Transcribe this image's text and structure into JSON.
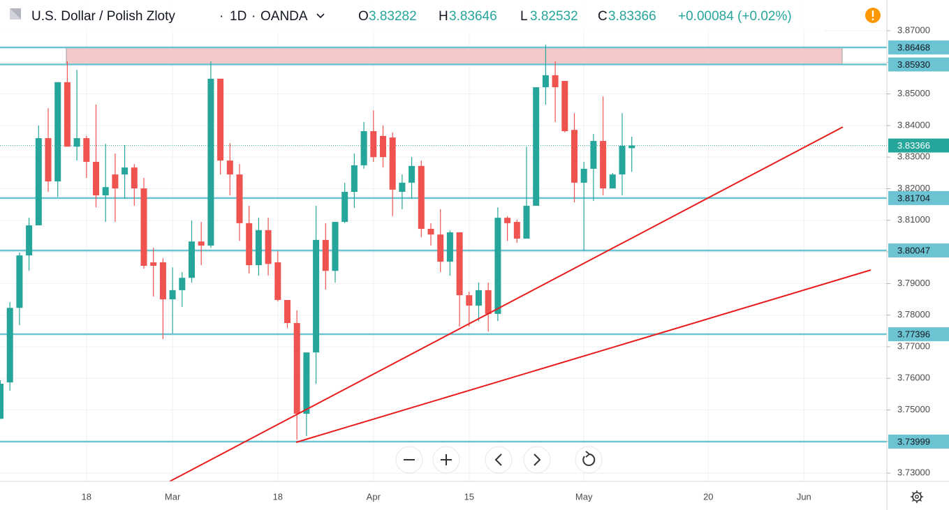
{
  "chart_data": {
    "type": "candlestick",
    "title": "U.S. Dollar / Polish Zloty",
    "interval": "1D",
    "source": "OANDA",
    "ohlc_labels": [
      "O",
      "H",
      "L",
      "C"
    ],
    "change": "+0.00084 (+0.02%)",
    "categories": [
      null,
      null,
      null,
      null,
      null,
      null,
      null,
      null,
      null,
      "18",
      null,
      null,
      null,
      null,
      null,
      null,
      null,
      null,
      "Mar",
      null,
      null,
      null,
      null,
      null,
      null,
      null,
      null,
      null,
      null,
      "18",
      null,
      null,
      null,
      null,
      null,
      null,
      null,
      null,
      null,
      "Apr",
      null,
      null,
      null,
      null,
      null,
      null,
      null,
      null,
      null,
      "15",
      null,
      null,
      null,
      null,
      null,
      null,
      null,
      null,
      null,
      null,
      null,
      "May",
      null,
      null,
      null,
      null,
      null,
      null,
      null,
      null,
      null,
      null,
      null,
      null,
      "20",
      null,
      null,
      null,
      null,
      null,
      null,
      null,
      null,
      null,
      "Jun",
      null,
      null,
      null,
      null,
      null,
      null,
      null,
      null
    ],
    "open": [
      3.7472,
      3.7587,
      3.7823,
      3.7989,
      3.8084,
      3.836,
      3.8223,
      3.8537,
      3.8333,
      3.836,
      3.8285,
      3.8179,
      3.8245,
      3.8245,
      3.8267,
      3.8201,
      3.7967,
      3.7967,
      3.785,
      3.7879,
      3.7918,
      3.8033,
      3.802,
      3.8548,
      3.8289,
      3.8245,
      3.8091,
      3.7958,
      3.8069,
      3.7967,
      3.7848,
      3.7775,
      3.7488,
      3.7682,
      3.8038,
      3.794,
      3.8095,
      3.819,
      3.8274,
      3.8382,
      3.8367,
      3.8362,
      3.819,
      3.8219,
      3.8272,
      3.8073,
      3.8055,
      3.7969,
      3.8062,
      3.7863,
      3.783,
      3.7879,
      3.7804,
      3.8108,
      3.8095,
      3.8042,
      3.8146,
      3.8521,
      3.8559,
      3.8541,
      3.8386,
      3.8219,
      3.8263,
      3.8351,
      3.8201,
      3.8245,
      3.83282,
      null,
      null,
      null,
      null,
      null,
      null,
      null,
      null,
      null,
      null,
      null,
      null,
      null,
      null,
      null,
      null,
      null,
      null,
      null,
      null,
      null,
      null,
      null,
      null,
      null,
      null
    ],
    "high": [
      3.7594,
      3.7841,
      3.7998,
      3.8108,
      3.84,
      3.8455,
      3.8537,
      3.8603,
      3.8576,
      3.8367,
      3.8466,
      3.8342,
      3.8311,
      3.8338,
      3.8278,
      3.8234,
      3.8013,
      3.798,
      3.7951,
      3.7936,
      3.8099,
      3.8095,
      3.8603,
      3.8548,
      3.8344,
      3.8278,
      3.8146,
      3.8108,
      3.8108,
      3.8002,
      3.7848,
      3.7815,
      3.7682,
      3.8146,
      3.8091,
      3.8095,
      3.8219,
      3.8311,
      3.8411,
      3.8448,
      3.84,
      3.8378,
      3.8245,
      3.83,
      3.8289,
      3.8091,
      3.8135,
      3.8068,
      3.8062,
      3.7874,
      3.7903,
      3.7903,
      3.8141,
      3.8113,
      3.8102,
      3.8333,
      3.8521,
      3.8656,
      3.8603,
      3.8541,
      3.8439,
      3.8285,
      3.8373,
      3.8492,
      3.825,
      3.8439,
      3.83646,
      null,
      null,
      null,
      null,
      null,
      null,
      null,
      null,
      null,
      null,
      null,
      null,
      null,
      null,
      null,
      null,
      null,
      null,
      null,
      null,
      null,
      null,
      null,
      null,
      null,
      null
    ],
    "low": [
      3.7472,
      3.7561,
      3.7768,
      3.794,
      3.8084,
      3.819,
      3.8174,
      3.8333,
      3.8289,
      3.8234,
      3.8141,
      3.8095,
      3.8095,
      3.8168,
      3.8146,
      3.7947,
      3.7859,
      3.7724,
      3.7742,
      3.7826,
      3.7903,
      3.7958,
      3.8013,
      3.8245,
      3.8179,
      3.8035,
      3.7932,
      3.7925,
      3.7925,
      3.7843,
      3.7759,
      3.7406,
      3.7417,
      3.7583,
      3.7881,
      3.7903,
      3.8091,
      3.8139,
      3.8263,
      3.8285,
      3.8267,
      3.8113,
      3.8135,
      3.8168,
      3.8046,
      3.802,
      3.7936,
      3.7925,
      3.7764,
      3.7764,
      3.7781,
      3.7748,
      3.7781,
      3.8035,
      3.8029,
      3.8042,
      3.8146,
      3.8466,
      3.8411,
      3.8378,
      3.8157,
      3.8004,
      3.8161,
      3.8179,
      3.8201,
      3.8179,
      3.82532,
      null,
      null,
      null,
      null,
      null,
      null,
      null,
      null,
      null,
      null,
      null,
      null,
      null,
      null,
      null,
      null,
      null,
      null,
      null,
      null,
      null,
      null,
      null,
      null,
      null,
      null
    ],
    "close": [
      3.7583,
      3.7823,
      3.7989,
      3.8084,
      3.836,
      3.8223,
      3.8537,
      3.8333,
      3.836,
      3.8285,
      3.8179,
      3.8205,
      3.8201,
      3.8267,
      3.8201,
      3.7956,
      3.7956,
      3.785,
      3.7879,
      3.7918,
      3.8033,
      3.802,
      3.8548,
      3.8289,
      3.8245,
      3.8091,
      3.7958,
      3.8069,
      3.7962,
      3.7848,
      3.7775,
      3.7488,
      3.7682,
      3.8038,
      3.794,
      3.8095,
      3.819,
      3.8274,
      3.8382,
      3.83,
      3.83,
      3.8197,
      3.8219,
      3.8272,
      3.8073,
      3.8055,
      3.7969,
      3.8062,
      3.7863,
      3.783,
      3.7879,
      3.7804,
      3.8108,
      3.8091,
      3.8042,
      3.8146,
      3.8521,
      3.8559,
      3.8521,
      3.8382,
      3.8219,
      3.8263,
      3.8351,
      3.8201,
      3.8245,
      3.8336,
      3.83366,
      null,
      null,
      null,
      null,
      null,
      null,
      null,
      null,
      null,
      null,
      null,
      null,
      null,
      null,
      null,
      null,
      null,
      null,
      null,
      null,
      null,
      null,
      null,
      null,
      null,
      null
    ],
    "up_color": "#26a69a",
    "down_color": "#ef5350",
    "level_color": "#6cc4d2",
    "zone_color": "#f5c9c9",
    "grid": true,
    "levels": [
      3.86468,
      {
        "value": 3.8593,
        "label": "3.85930"
      },
      3.81704,
      3.80047,
      3.77396,
      3.73999
    ],
    "ylim": [
      3.7274,
      3.8797
    ],
    "yticks": [
      {
        "value": 3.73,
        "label": "3.73000"
      },
      {
        "value": 3.74,
        "label": "3.74000"
      },
      {
        "value": 3.75,
        "label": "3.75000"
      },
      {
        "value": 3.76,
        "label": "3.76000"
      },
      {
        "value": 3.77,
        "label": "3.77000"
      },
      {
        "value": 3.78,
        "label": "3.78000"
      },
      {
        "value": 3.79,
        "label": "3.79000"
      },
      {
        "value": 3.8,
        "label": "3.80000"
      },
      {
        "value": 3.81,
        "label": "3.81000"
      },
      {
        "value": 3.82,
        "label": "3.82000"
      },
      {
        "value": 3.83,
        "label": "3.83000"
      },
      {
        "value": 3.84,
        "label": "3.84000"
      },
      {
        "value": 3.85,
        "label": "3.85000"
      },
      {
        "value": 3.86,
        "label": "3.86000"
      },
      {
        "value": 3.87,
        "label": "3.87000"
      }
    ]
  }
}
